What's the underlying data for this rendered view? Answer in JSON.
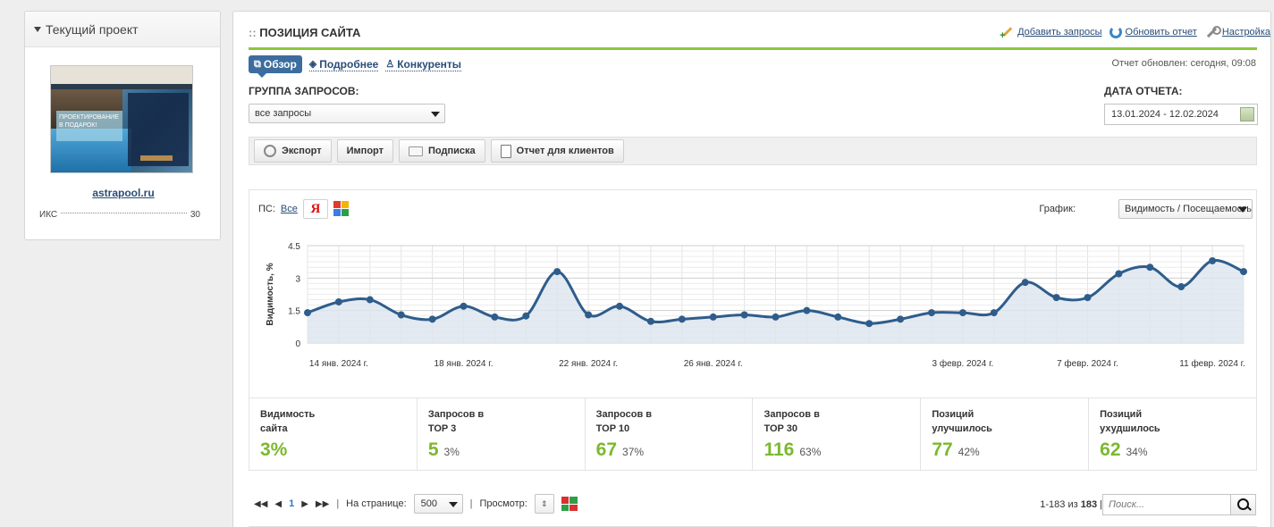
{
  "sidebar": {
    "title": "Текущий проект",
    "thumb_text": "ПРОЕКТИРОВАНИЕ В ПОДАРОК!",
    "site": "astrapool.ru",
    "iks_label": "ИКС",
    "iks_value": "30"
  },
  "header": {
    "title": "ПОЗИЦИЯ САЙТА",
    "title_prefix": "::",
    "links": {
      "add": "Добавить запросы",
      "refresh": "Обновить отчет",
      "settings": "Настройка"
    }
  },
  "tabs": [
    "Обзор",
    "Подробнее",
    "Конкуренты"
  ],
  "updated": "Отчет обновлен: сегодня, 09:08",
  "filters": {
    "group_label": "ГРУППА ЗАПРОСОВ:",
    "group_value": "все запросы",
    "date_label": "ДАТА ОТЧЕТА:",
    "date_value": "13.01.2024 - 12.02.2024"
  },
  "toolbar": [
    "Экспорт",
    "Импорт",
    "Подписка",
    "Отчет для клиентов"
  ],
  "chart_panel": {
    "ps_label": "ПС:",
    "ps_all": "Все",
    "ps_yandex": "Я",
    "graph_label": "График:",
    "graph_value": "Видимость / Посещаемость"
  },
  "chart_data": {
    "type": "area",
    "ylabel": "Видимость, %",
    "ylim": [
      0,
      4.5
    ],
    "yticks": [
      "0",
      "1.5",
      "3",
      "4.5"
    ],
    "xtick_labels": [
      "14 янв. 2024 г.",
      "18 янв. 2024 г.",
      "22 янв. 2024 г.",
      "26 янв. 2024 г.",
      "3 февр. 2024 г.",
      "7 февр. 2024 г.",
      "11 февр. 2024 г."
    ],
    "xtick_index": [
      1,
      5,
      9,
      13,
      21,
      25,
      29
    ],
    "values": [
      1.4,
      1.9,
      2.0,
      1.3,
      1.1,
      1.7,
      1.2,
      1.25,
      3.3,
      1.3,
      1.7,
      1.0,
      1.1,
      1.2,
      1.3,
      1.2,
      1.5,
      1.2,
      0.9,
      1.1,
      1.4,
      1.4,
      1.4,
      2.8,
      2.1,
      2.1,
      3.2,
      3.5,
      2.6,
      3.8,
      3.3
    ],
    "color": "#2e5d8c",
    "fill": "#dde5ee"
  },
  "stats": [
    {
      "title": "Видимость\nсайта",
      "value": "3%",
      "pct": ""
    },
    {
      "title": "Запросов в\nTOP 3",
      "value": "5",
      "pct": "3%"
    },
    {
      "title": "Запросов в\nTOP 10",
      "value": "67",
      "pct": "37%"
    },
    {
      "title": "Запросов в\nTOP 30",
      "value": "116",
      "pct": "63%"
    },
    {
      "title": "Позиций\nулучшилось",
      "value": "77",
      "pct": "42%"
    },
    {
      "title": "Позиций\nухудшилось",
      "value": "62",
      "pct": "34%"
    }
  ],
  "pager": {
    "current": "1",
    "per_page_label": "На странице:",
    "per_page": "500",
    "view_label": "Просмотр:",
    "count_prefix": "1-183 из",
    "count_total": "183",
    "search_placeholder": "Поиск..."
  }
}
